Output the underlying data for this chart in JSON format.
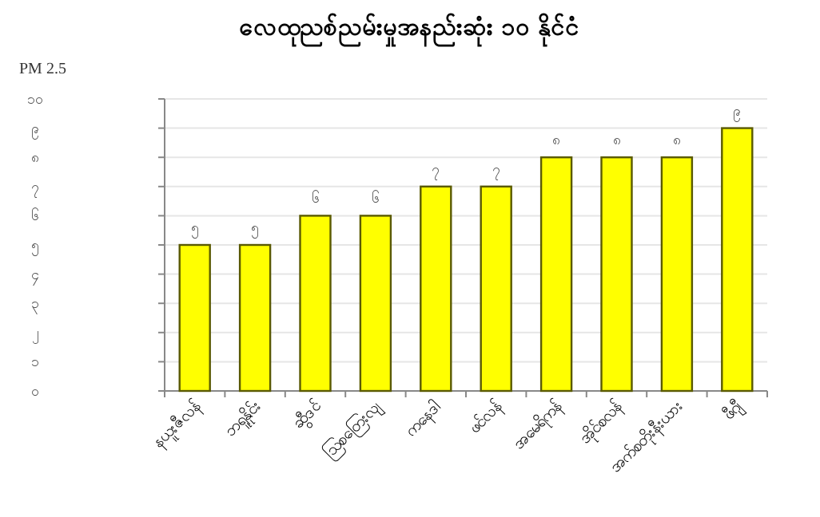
{
  "chart_data": {
    "type": "bar",
    "title": "လေထုညစ်ညမ်းမှုအနည်းဆုံး ၁၀ နိုင်ငံ",
    "ylabel": "PM 2.5",
    "categories": [
      "နယူးဇီလန်",
      "ဘရူနိုင်း",
      "ဆွီဒင်",
      "ဩစတြေးလျ",
      "ကနေဒါ",
      "ဖင်လန်",
      "အမေရိကန်",
      "အိုင်စလန်",
      "အက်စတိုးနီးယား",
      "ဖီဂျီ"
    ],
    "values": [
      5,
      5,
      6,
      6,
      7,
      7,
      8,
      8,
      8,
      9
    ],
    "value_labels": [
      "၅",
      "၅",
      "၆",
      "၆",
      "၇",
      "၇",
      "၈",
      "၈",
      "၈",
      "၉"
    ],
    "color": "#ffff00",
    "ylim": [
      0,
      10
    ],
    "yticks": [
      {
        "value": 0,
        "label": "၀"
      },
      {
        "value": 1,
        "label": "၁"
      },
      {
        "value": 2,
        "label": "၂"
      },
      {
        "value": 3,
        "label": "၃"
      },
      {
        "value": 4,
        "label": "၄"
      },
      {
        "value": 5,
        "label": "၅"
      },
      {
        "value": 6,
        "label": "၆"
      },
      {
        "value": 7,
        "label": "၇"
      },
      {
        "value": 8,
        "label": "၈"
      },
      {
        "value": 9,
        "label": "၉"
      },
      {
        "value": 10,
        "label": "၁၀"
      }
    ],
    "grid": "y"
  }
}
